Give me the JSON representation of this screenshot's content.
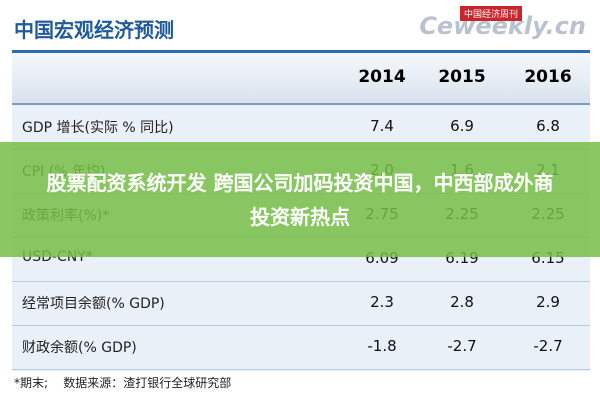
{
  "header": {
    "title": "中国宏观经济预测",
    "watermark": "Ceweekly.cn",
    "watermark_badge": "中国经济周刊"
  },
  "table": {
    "columns": [
      "2014",
      "2015",
      "2016"
    ],
    "rows": [
      [
        "GDP 增长(实际 % 同比)",
        "7.4",
        "6.9",
        "6.8"
      ],
      [
        "CPI (% 年均)",
        "2.0",
        "1.6",
        "2.1"
      ],
      [
        "政策利率(%)*",
        "2.75",
        "2.25",
        "2.25"
      ],
      [
        "USD-CNY*",
        "6.09",
        "6.19",
        "6.15"
      ],
      [
        "经常项目余额(% GDP)",
        "2.3",
        "2.8",
        "2.9"
      ],
      [
        "财政余额(% GDP)",
        "-1.8",
        "-2.7",
        "-2.7"
      ]
    ],
    "footnote": "*期末;    数据来源：渣打银行全球研究部"
  },
  "banner": {
    "text": "股票配资系统开发 跨国公司加码投资中国，中西部成外商投资新热点"
  }
}
